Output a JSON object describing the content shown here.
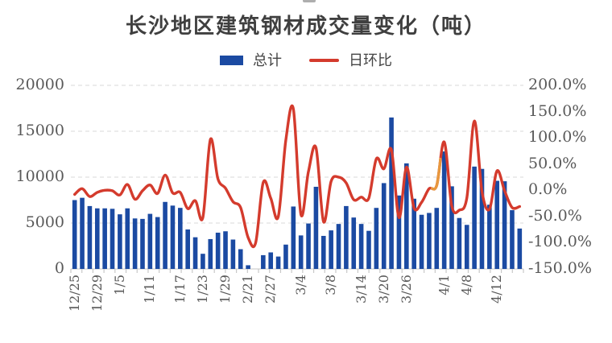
{
  "title": "长沙地区建筑钢材成交量变化（吨）",
  "legend": {
    "total_label": "总计",
    "ratio_label": "日环比"
  },
  "colors": {
    "bar_blue": "#1B4AA2",
    "line_red": "#D43B2D",
    "line_orange_segment": "#E8983E",
    "axis_text": "#595959",
    "title_text": "#3F3F3F",
    "gridline": "#D9D9D9",
    "tick": "#C8C8C8"
  },
  "chart_data": {
    "type": "bar+line combo",
    "title": "长沙地区建筑钢材成交量变化（吨）",
    "grid": "horizontal dashed",
    "legend_position": "top center",
    "x_tick_labels": [
      "12/25",
      "12/29",
      "1/5",
      "1/11",
      "1/17",
      "1/23",
      "1/29",
      "2/21",
      "2/27",
      "3/4",
      "3/8",
      "3/14",
      "3/20",
      "3/26",
      "4/1",
      "4/8",
      "4/12"
    ],
    "x_tick_indices": [
      0,
      3,
      6,
      10,
      14,
      17,
      20,
      23,
      26,
      30,
      34,
      38,
      41,
      44,
      49,
      52,
      56
    ],
    "n_points": 60,
    "series": [
      {
        "name": "总计",
        "type": "bar",
        "axis": "left",
        "unit": "吨",
        "values": [
          7500,
          7750,
          6850,
          6600,
          6600,
          6550,
          5950,
          6600,
          5500,
          5450,
          6000,
          5650,
          7300,
          6900,
          6650,
          4300,
          3450,
          1650,
          3250,
          3950,
          4100,
          3200,
          2150,
          400,
          0,
          1500,
          1800,
          1350,
          2650,
          6800,
          3650,
          4950,
          8950,
          3600,
          4200,
          4900,
          6850,
          5600,
          4900,
          4150,
          6650,
          9350,
          16500,
          8000,
          11500,
          7650,
          5900,
          6100,
          6650,
          12800,
          9000,
          5550,
          4800,
          11150,
          10900,
          7000,
          9600,
          9550,
          6400,
          4400
        ]
      },
      {
        "name": "日环比",
        "type": "line",
        "axis": "right",
        "unit": "%",
        "smoothed": true,
        "values": [
          -8,
          3,
          -12,
          -4,
          0,
          -1,
          -9,
          11,
          -17,
          -1,
          10,
          -6,
          29,
          -5,
          -4,
          -35,
          -20,
          -52,
          97,
          22,
          4,
          -22,
          -33,
          -90,
          -100,
          15,
          -15,
          -50,
          95,
          155,
          -46,
          36,
          81,
          -60,
          17,
          25,
          14,
          -18,
          -13,
          -15,
          60,
          41,
          77,
          -52,
          44,
          -34,
          -23,
          3,
          9,
          92,
          -30,
          -38,
          -14,
          132,
          -2,
          -36,
          37,
          -1,
          -33,
          -31
        ]
      }
    ],
    "y_left": {
      "ticks": [
        "20000",
        "15000",
        "10000",
        "5000",
        "0"
      ],
      "lim": [
        0,
        20000
      ]
    },
    "y_right": {
      "ticks": [
        "200.0%",
        "150.0%",
        "100.0%",
        "50.0%",
        "0.0%",
        "-50.0%",
        "-100.0%",
        "-150.0%"
      ],
      "lim": [
        -150,
        200
      ]
    },
    "anomaly": {
      "note": "short orange-colored stretch of the ratio line just before the 4/1 peak",
      "color": "#E8983E"
    }
  },
  "layout_text": {
    "x_axis_label_rotation": "-90deg"
  }
}
